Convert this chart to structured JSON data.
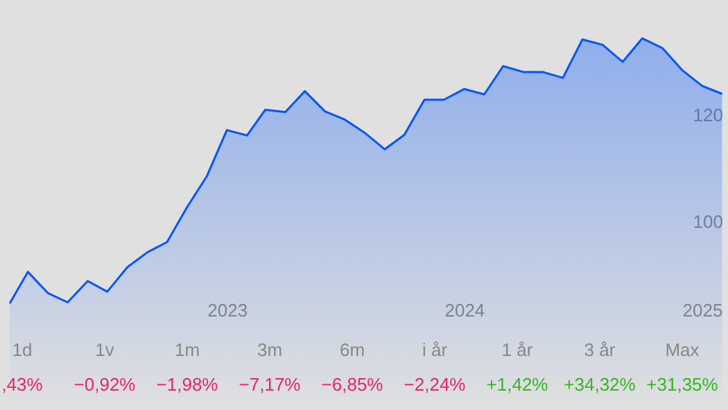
{
  "chart_data": {
    "type": "area",
    "x": [
      "2022-02",
      "2022-03",
      "2022-04",
      "2022-05",
      "2022-06",
      "2022-07",
      "2022-08",
      "2022-09",
      "2022-10",
      "2022-11",
      "2022-12",
      "2023-01",
      "2023-02",
      "2023-03",
      "2023-04",
      "2023-05",
      "2023-06",
      "2023-07",
      "2023-08",
      "2023-09",
      "2023-10",
      "2023-11",
      "2023-12",
      "2024-01",
      "2024-02",
      "2024-03",
      "2024-04",
      "2024-05",
      "2024-06",
      "2024-07",
      "2024-08",
      "2024-09",
      "2024-10",
      "2024-11",
      "2024-12",
      "2025-01",
      "2025-02"
    ],
    "series": [
      {
        "color": "#0055ff",
        "values": [
          84.7,
          90.6,
          86.6,
          84.9,
          88.9,
          86.9,
          91.5,
          94.3,
          96.2,
          102.8,
          108.5,
          117.2,
          116.2,
          121.0,
          120.6,
          124.5,
          120.7,
          119.2,
          116.7,
          113.6,
          116.3,
          122.9,
          122.9,
          124.9,
          123.9,
          129.2,
          128.1,
          128.1,
          127.0,
          134.2,
          133.2,
          130.0,
          134.4,
          132.6,
          128.5,
          125.5,
          124.0
        ]
      }
    ],
    "xlim": [
      "2022-01-17",
      "2025-02-10"
    ],
    "ylim": [
      64.7,
      141.6
    ],
    "xticks": [
      {
        "value": "2023-01-01",
        "label": "2023"
      },
      {
        "value": "2024-01-01",
        "label": "2024"
      },
      {
        "value": "2025-01-01",
        "label": "2025"
      }
    ],
    "yticks": [
      100,
      120
    ],
    "annotations": [
      "1d",
      ",43%",
      "1v",
      "−0,92%",
      "1m",
      "−1,98%",
      "3m",
      "−7,17%",
      "6m",
      "−6,85%",
      "i år",
      "−2,24%",
      "1 år",
      "+1,42%",
      "3 år",
      "+34,32%",
      "Max",
      "+31,35%"
    ]
  }
}
